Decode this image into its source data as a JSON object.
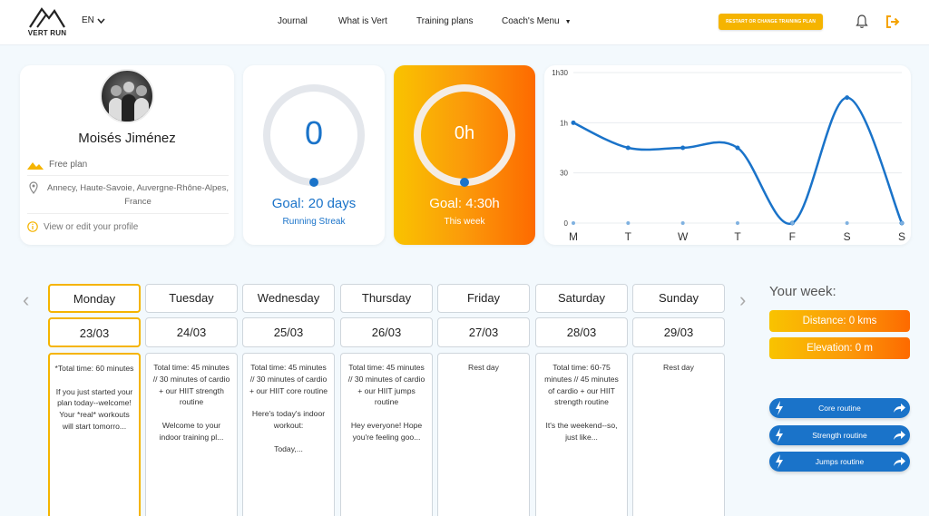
{
  "header": {
    "logo_text": "VERT RUN",
    "language": "EN",
    "nav": [
      "Journal",
      "What is Vert",
      "Training plans",
      "Coach's Menu"
    ],
    "restart_label": "RESTART OR CHANGE TRAINING PLAN"
  },
  "profile": {
    "name": "Moisés Jiménez",
    "plan": "Free plan",
    "location": "Annecy, Haute-Savoie, Auvergne-Rhône-Alpes, France",
    "edit_label": "View or edit your profile"
  },
  "streak": {
    "value": "0",
    "goal": "Goal: 20 days",
    "label": "Running Streak",
    "progress": 0
  },
  "week_time": {
    "value": "0h",
    "goal": "Goal: 4:30h",
    "label": "This week",
    "progress": 0
  },
  "chart_data": {
    "type": "line",
    "categories": [
      "M",
      "T",
      "W",
      "T",
      "F",
      "S",
      "S"
    ],
    "y_ticks": [
      "0",
      "30",
      "1h",
      "1h30"
    ],
    "ylim": [
      0,
      90
    ],
    "series": [
      {
        "values": [
          60,
          45,
          45,
          45,
          0,
          75,
          0
        ]
      }
    ],
    "color": "#1a73c9"
  },
  "days": [
    {
      "name": "Monday",
      "date": "23/03",
      "text": "*Total time: 60 minutes\n\nIf you just started your plan today--welcome! Your *real* workouts will start tomorro..."
    },
    {
      "name": "Tuesday",
      "date": "24/03",
      "text": "Total time: 45 minutes // 30 minutes of cardio + our HIIT strength routine\n\nWelcome to your indoor training pl..."
    },
    {
      "name": "Wednesday",
      "date": "25/03",
      "text": "Total time: 45 minutes // 30 minutes of cardio + our HIIT core routine\n\nHere's today's indoor workout:\n\nToday,..."
    },
    {
      "name": "Thursday",
      "date": "26/03",
      "text": "Total time: 45 minutes // 30 minutes of cardio + our HIIT jumps routine\n\nHey everyone! Hope you're feeling goo..."
    },
    {
      "name": "Friday",
      "date": "27/03",
      "text": "Rest day"
    },
    {
      "name": "Saturday",
      "date": "28/03",
      "text": "Total time: 60-75 minutes // 45 minutes of cardio + our HIIT strength routine\n\nIt's the weekend--so, just like..."
    },
    {
      "name": "Sunday",
      "date": "29/03",
      "text": "Rest day"
    }
  ],
  "your_week": {
    "title": "Your week:",
    "distance": "Distance: 0 kms",
    "elevation": "Elevation: 0 m",
    "routines": [
      "Core routine",
      "Strength routine",
      "Jumps routine"
    ]
  },
  "colors": {
    "accent": "#1a73c9",
    "orange": "#fd6a00",
    "yellow": "#f5b400"
  }
}
